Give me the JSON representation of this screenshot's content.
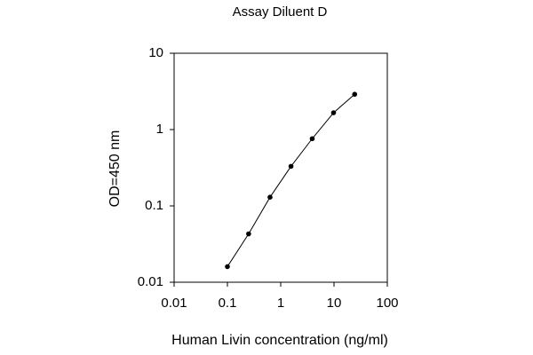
{
  "chart_data": {
    "type": "line",
    "title": "Assay Diluent D",
    "x_label": "Human Livin concentration (ng/ml)",
    "y_label": "OD=450 nm",
    "x_log": true,
    "y_log": true,
    "xlim": [
      0.01,
      100
    ],
    "ylim": [
      0.01,
      10
    ],
    "xticks": [
      0.01,
      0.1,
      1,
      10,
      100
    ],
    "yticks": [
      0.01,
      0.1,
      1,
      10
    ],
    "grid": false,
    "series": [
      {
        "name": "Assay Diluent D",
        "color": "#000000",
        "x": [
          0.1,
          0.25,
          0.63,
          1.56,
          3.9,
          9.8,
          24.4
        ],
        "values": [
          0.016,
          0.043,
          0.13,
          0.33,
          0.76,
          1.66,
          2.9
        ]
      }
    ]
  }
}
